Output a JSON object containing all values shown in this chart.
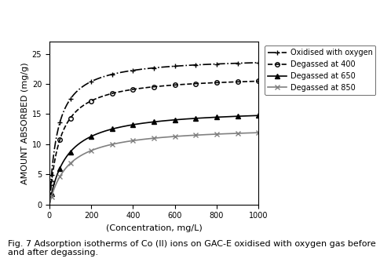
{
  "title": "",
  "xlabel": "(Concentration, mg/L)",
  "ylabel": "AMOUNT ABSORBED (mg/g)",
  "caption": "Fig. 7 Adsorption isotherms of Co (II) ions on GAC-E oxidised with oxygen gas before\nand after degassing.",
  "xlim": [
    0,
    1000
  ],
  "ylim": [
    0,
    27
  ],
  "yticks": [
    0,
    5,
    10,
    15,
    20,
    25
  ],
  "xticks": [
    0,
    200,
    400,
    600,
    800,
    1000
  ],
  "series": [
    {
      "label": "Oxidised with oxygen",
      "color": "black",
      "linestyle": "-.",
      "marker": "+",
      "Qmax": 24.5,
      "b": 0.025
    },
    {
      "label": "Degassed at 400",
      "color": "black",
      "linestyle": "--",
      "marker": "o",
      "Qmax": 21.5,
      "b": 0.02
    },
    {
      "label": "Degassed at 650",
      "color": "black",
      "linestyle": "-",
      "marker": "^",
      "Qmax": 16.0,
      "b": 0.012
    },
    {
      "label": "Degassed at 850",
      "color": "gray",
      "linestyle": "-",
      "marker": "x",
      "Qmax": 13.0,
      "b": 0.011
    }
  ],
  "background_color": "#ffffff",
  "legend_fontsize": 7,
  "axis_fontsize": 8,
  "tick_fontsize": 7,
  "caption_fontsize": 8
}
